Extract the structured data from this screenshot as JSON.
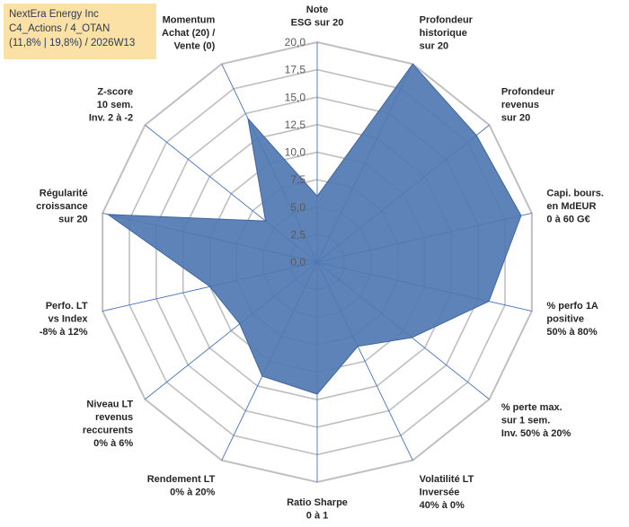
{
  "header": {
    "company": "NextEra Energy Inc",
    "portfolio": "C4_Actions / 4_OTAN",
    "summary": "(11,8% | 19,8%) / 2026W13"
  },
  "colors": {
    "fill": "#4f78b3",
    "stroke": "#3e659e",
    "grid": "#bfbfbf",
    "spoke": "#4472c4",
    "header_bg": "#fbe1a6"
  },
  "chart_data": {
    "type": "radar",
    "title": "",
    "rmin": 0,
    "rmax": 20,
    "ticks": [
      "0,0",
      "2,5",
      "5,0",
      "7,5",
      "10,0",
      "12,5",
      "15,0",
      "17,5",
      "20,0"
    ],
    "categories": [
      [
        "Note",
        "ESG sur 20"
      ],
      [
        "Profondeur",
        "historique",
        "sur 20"
      ],
      [
        "Profondeur",
        "revenus",
        "sur 20"
      ],
      [
        "Capi. bours.",
        "en MdEUR",
        "0 à 60 G€"
      ],
      [
        "% perfo 1A",
        "positive",
        "50% à 80%"
      ],
      [
        "% perte max.",
        "sur 1 sem.",
        "Inv. 50% à 20%"
      ],
      [
        "Volatilité LT",
        "Inversée",
        "40% à 0%"
      ],
      [
        "Ratio Sharpe",
        "0 à 1"
      ],
      [
        "Rendement LT",
        "0% à 20%"
      ],
      [
        "Niveau LT",
        "revenus",
        "reccurents",
        "0% à 6%"
      ],
      [
        "Perfo. LT",
        "vs Index",
        "-8% à 12%"
      ],
      [
        "Régularité",
        "croissance",
        "sur 20"
      ],
      [
        "Z-score",
        "10 sem.",
        "Inv. 2 à -2"
      ],
      [
        "Momentum",
        "Achat (20) /",
        "Vente (0)"
      ]
    ],
    "series": [
      {
        "name": "NextEra Energy Inc",
        "values": [
          6.0,
          20.0,
          18.5,
          19.0,
          16.0,
          11.0,
          8.5,
          12.0,
          11.5,
          9.0,
          10.0,
          19.5,
          6.0,
          14.5
        ]
      }
    ]
  }
}
